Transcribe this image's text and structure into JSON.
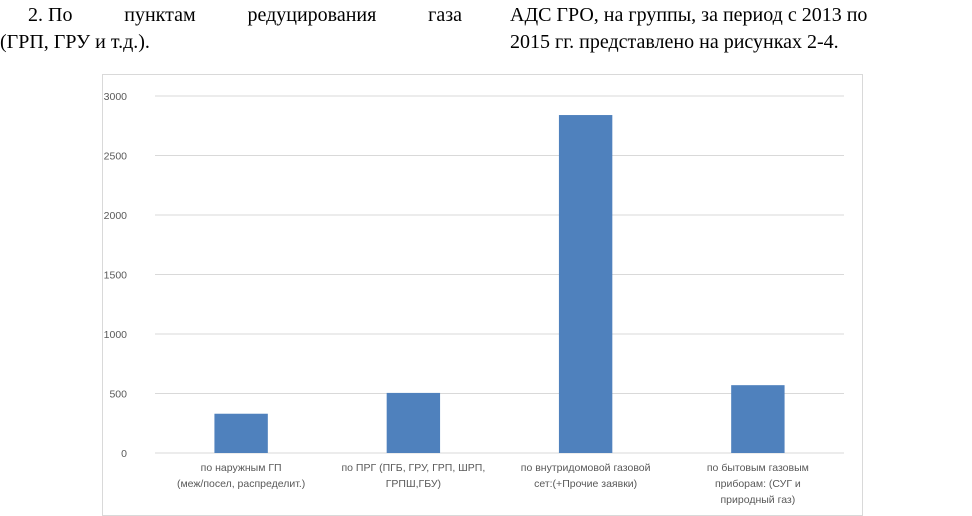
{
  "text": {
    "left": {
      "line1_words": [
        "2. По",
        "пунктам",
        "редуцирования",
        "газа"
      ],
      "line2": "(ГРП, ГРУ и т.д.)."
    },
    "right": {
      "line1": "АДС ГРО, на группы, за период с 2013 по",
      "line2": "2015 гг. представлено на рисунках 2-4."
    }
  },
  "chart_data": {
    "type": "bar",
    "categories": [
      [
        "по наружным ГП",
        "(меж/посел, распределит.)"
      ],
      [
        "по ПРГ (ПГБ, ГРУ, ГРП, ШРП,",
        "ГРПШ,ГБУ)"
      ],
      [
        "по внутридомовой газовой",
        "сет:(+Прочие заявки)"
      ],
      [
        "по бытовым газовым",
        "приборам: (СУГ и",
        "природный газ)"
      ]
    ],
    "values": [
      330,
      505,
      2840,
      570
    ],
    "ylim": [
      0,
      3000
    ],
    "yticks": [
      0,
      500,
      1000,
      1500,
      2000,
      2500,
      3000
    ],
    "grid": true,
    "title": "",
    "xlabel": "",
    "ylabel": "",
    "colors": {
      "bar": "#4f81bd",
      "grid": "#d9d9d9",
      "axis": "#d9d9d9",
      "label": "#595959"
    }
  }
}
